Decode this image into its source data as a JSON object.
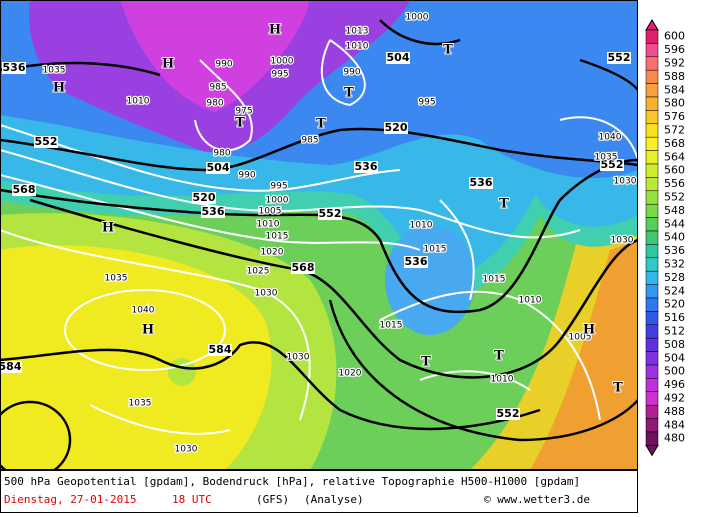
{
  "legend": {
    "levels": [
      600,
      596,
      592,
      588,
      584,
      580,
      576,
      572,
      568,
      564,
      560,
      556,
      552,
      548,
      544,
      540,
      536,
      532,
      528,
      524,
      520,
      516,
      512,
      508,
      504,
      500,
      496,
      492,
      488,
      484,
      480
    ],
    "colors": [
      "#e0206e",
      "#f0508a",
      "#f87070",
      "#f88a50",
      "#f8a040",
      "#f8b030",
      "#f8c828",
      "#f8e020",
      "#f8f020",
      "#e8f028",
      "#d0ec30",
      "#b8e838",
      "#98e040",
      "#78d848",
      "#58d058",
      "#40c870",
      "#30c8a0",
      "#30c8c8",
      "#30b8e8",
      "#3098f0",
      "#3078f0",
      "#3058e8",
      "#4040e0",
      "#6030e0",
      "#8030e0",
      "#a030e0",
      "#c030e0",
      "#d030d0",
      "#b02090",
      "#901878",
      "#701060"
    ]
  },
  "map": {
    "labels": [
      "536",
      "552",
      "568",
      "520",
      "536",
      "504",
      "520",
      "536",
      "552",
      "568",
      "536",
      "536",
      "552",
      "552",
      "584",
      "584",
      "552",
      "504",
      "1035",
      "1010",
      "990",
      "985",
      "980",
      "975",
      "1000",
      "995",
      "990",
      "985",
      "980",
      "990",
      "995",
      "1000",
      "1005",
      "1010",
      "1015",
      "1020",
      "1025",
      "1030",
      "1035",
      "1040",
      "1035",
      "1030",
      "1030",
      "1020",
      "1015",
      "1010",
      "1015",
      "1015",
      "1010",
      "1010",
      "1005",
      "1030",
      "1035",
      "1040",
      "1030",
      "995",
      "1000",
      "1010",
      "1013",
      "H",
      "H",
      "H",
      "T",
      "T",
      "T",
      "T",
      "T",
      "T",
      "T",
      "H",
      "H",
      "H",
      "T"
    ]
  },
  "caption": {
    "line1": "500 hPa Geopotential [gpdam], Bodendruck [hPa], relative Topographie H500-H1000 [gpdam]",
    "date": "Dienstag, 27-01-2015",
    "time": "18 UTC",
    "model": "(GFS)",
    "run": "(Analyse)",
    "source": "© www.wetter3.de"
  }
}
